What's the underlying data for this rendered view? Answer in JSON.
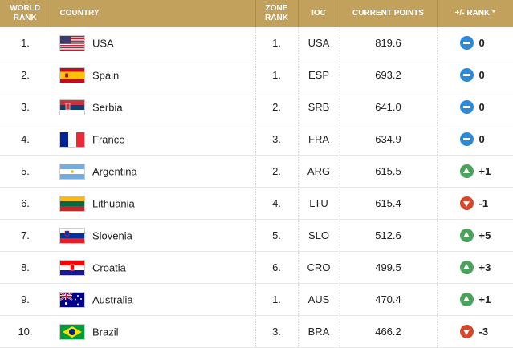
{
  "headers": {
    "world_rank": "WORLD RANK",
    "country": "COUNTRY",
    "zone_rank": "ZONE RANK",
    "ioc": "IOC",
    "points": "CURRENT POINTS",
    "change": "+/- RANK *"
  },
  "rows": [
    {
      "rank": "1.",
      "country": "USA",
      "flag": "usa-flag-icon",
      "zone": "1.",
      "ioc": "USA",
      "points": "819.6",
      "change": "0",
      "trend": "same"
    },
    {
      "rank": "2.",
      "country": "Spain",
      "flag": "spain-flag-icon",
      "zone": "1.",
      "ioc": "ESP",
      "points": "693.2",
      "change": "0",
      "trend": "same"
    },
    {
      "rank": "3.",
      "country": "Serbia",
      "flag": "serbia-flag-icon",
      "zone": "2.",
      "ioc": "SRB",
      "points": "641.0",
      "change": "0",
      "trend": "same"
    },
    {
      "rank": "4.",
      "country": "France",
      "flag": "france-flag-icon",
      "zone": "3.",
      "ioc": "FRA",
      "points": "634.9",
      "change": "0",
      "trend": "same"
    },
    {
      "rank": "5.",
      "country": "Argentina",
      "flag": "argentina-flag-icon",
      "zone": "2.",
      "ioc": "ARG",
      "points": "615.5",
      "change": "+1",
      "trend": "up"
    },
    {
      "rank": "6.",
      "country": "Lithuania",
      "flag": "lithuania-flag-icon",
      "zone": "4.",
      "ioc": "LTU",
      "points": "615.4",
      "change": "-1",
      "trend": "down"
    },
    {
      "rank": "7.",
      "country": "Slovenia",
      "flag": "slovenia-flag-icon",
      "zone": "5.",
      "ioc": "SLO",
      "points": "512.6",
      "change": "+5",
      "trend": "up"
    },
    {
      "rank": "8.",
      "country": "Croatia",
      "flag": "croatia-flag-icon",
      "zone": "6.",
      "ioc": "CRO",
      "points": "499.5",
      "change": "+3",
      "trend": "up"
    },
    {
      "rank": "9.",
      "country": "Australia",
      "flag": "australia-flag-icon",
      "zone": "1.",
      "ioc": "AUS",
      "points": "470.4",
      "change": "+1",
      "trend": "up"
    },
    {
      "rank": "10.",
      "country": "Brazil",
      "flag": "brazil-flag-icon",
      "zone": "3.",
      "ioc": "BRA",
      "points": "466.2",
      "change": "-3",
      "trend": "down"
    }
  ],
  "colors": {
    "header_bg": "#c2a15d",
    "same": "#2a8ad8",
    "up": "#4aa35a",
    "down": "#d8472a"
  }
}
